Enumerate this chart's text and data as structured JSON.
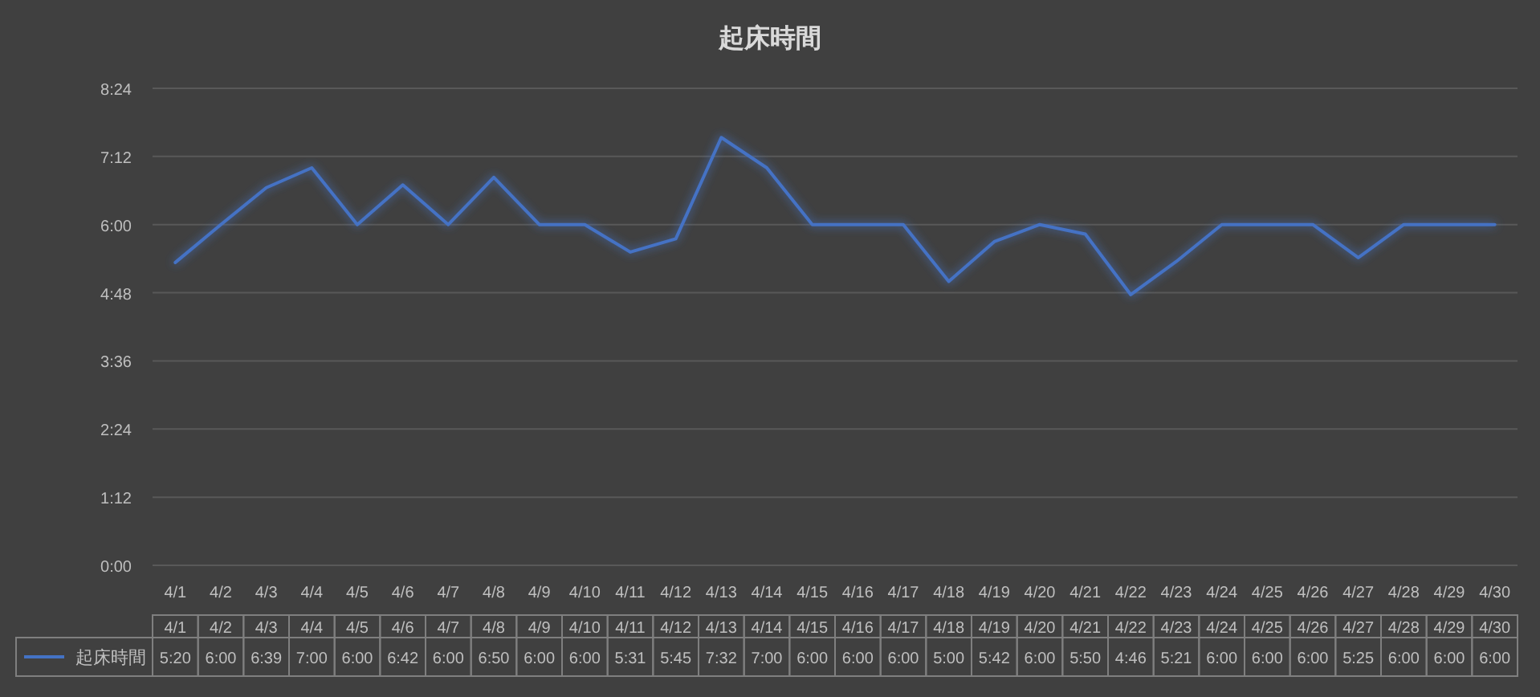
{
  "chart_data": {
    "type": "line",
    "title": "起床時間",
    "categories": [
      "4/1",
      "4/2",
      "4/3",
      "4/4",
      "4/5",
      "4/6",
      "4/7",
      "4/8",
      "4/9",
      "4/10",
      "4/11",
      "4/12",
      "4/13",
      "4/14",
      "4/15",
      "4/16",
      "4/17",
      "4/18",
      "4/19",
      "4/20",
      "4/21",
      "4/22",
      "4/23",
      "4/24",
      "4/25",
      "4/26",
      "4/27",
      "4/28",
      "4/29",
      "4/30"
    ],
    "series": [
      {
        "name": "起床時間",
        "color": "#4472c4",
        "values": [
          5.3333,
          6,
          6.65,
          7,
          6,
          6.7,
          6,
          6.8333,
          6,
          6,
          5.5167,
          5.75,
          7.5333,
          7,
          6,
          6,
          6,
          5,
          5.7,
          6,
          5.8333,
          4.7667,
          5.35,
          6,
          6,
          6,
          5.4167,
          6,
          6,
          6
        ],
        "value_labels": [
          "5:20",
          "6:00",
          "6:39",
          "7:00",
          "6:00",
          "6:42",
          "6:00",
          "6:50",
          "6:00",
          "6:00",
          "5:31",
          "5:45",
          "7:32",
          "7:00",
          "6:00",
          "6:00",
          "6:00",
          "5:00",
          "5:42",
          "6:00",
          "5:50",
          "4:46",
          "5:21",
          "6:00",
          "6:00",
          "6:00",
          "5:25",
          "6:00",
          "6:00",
          "6:00"
        ]
      }
    ],
    "ylim": [
      0,
      8.4
    ],
    "yticks": [
      {
        "value": 0,
        "label": "0:00"
      },
      {
        "value": 1.2,
        "label": "1:12"
      },
      {
        "value": 2.4,
        "label": "2:24"
      },
      {
        "value": 3.6,
        "label": "3:36"
      },
      {
        "value": 4.8,
        "label": "4:48"
      },
      {
        "value": 6,
        "label": "6:00"
      },
      {
        "value": 7.2,
        "label": "7:12"
      },
      {
        "value": 8.4,
        "label": "8:24"
      }
    ],
    "grid": "y",
    "legend": "bottom"
  }
}
